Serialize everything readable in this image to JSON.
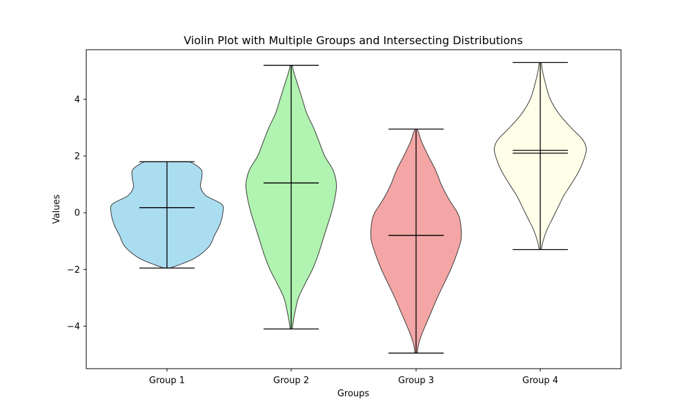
{
  "chart_data": {
    "type": "violin",
    "title": "Violin Plot with Multiple Groups and Intersecting Distributions",
    "xlabel": "Groups",
    "ylabel": "Values",
    "ylim": [
      -5.5,
      5.75
    ],
    "yticks": [
      -4,
      -2,
      0,
      2,
      4
    ],
    "ytick_labels": [
      "−4",
      "−2",
      "0",
      "2",
      "4"
    ],
    "categories": [
      "Group 1",
      "Group 2",
      "Group 3",
      "Group 4"
    ],
    "groups": [
      {
        "name": "Group 1",
        "color": "#87CEEB",
        "min": -1.95,
        "max": 1.8,
        "mean": 0.18,
        "median": 0.18,
        "profile": [
          [
            -1.95,
            0.05
          ],
          [
            -1.85,
            0.2
          ],
          [
            -1.6,
            0.5
          ],
          [
            -1.2,
            0.75
          ],
          [
            -0.8,
            0.85
          ],
          [
            -0.4,
            0.95
          ],
          [
            0,
            1.0
          ],
          [
            0.3,
            0.98
          ],
          [
            0.6,
            0.7
          ],
          [
            0.9,
            0.6
          ],
          [
            1.2,
            0.62
          ],
          [
            1.5,
            0.62
          ],
          [
            1.7,
            0.5
          ],
          [
            1.8,
            0.4
          ]
        ]
      },
      {
        "name": "Group 2",
        "color": "#90EE90",
        "min": -4.1,
        "max": 5.2,
        "mean": 1.05,
        "median": 1.05,
        "profile": [
          [
            -4.1,
            0.02
          ],
          [
            -3.8,
            0.04
          ],
          [
            -3.4,
            0.08
          ],
          [
            -3.0,
            0.13
          ],
          [
            -2.5,
            0.25
          ],
          [
            -2.0,
            0.38
          ],
          [
            -1.5,
            0.48
          ],
          [
            -1.0,
            0.56
          ],
          [
            -0.5,
            0.64
          ],
          [
            0,
            0.72
          ],
          [
            0.5,
            0.78
          ],
          [
            1.0,
            0.81
          ],
          [
            1.5,
            0.75
          ],
          [
            2.0,
            0.6
          ],
          [
            2.5,
            0.5
          ],
          [
            3.0,
            0.4
          ],
          [
            3.5,
            0.28
          ],
          [
            4.0,
            0.2
          ],
          [
            4.5,
            0.12
          ],
          [
            5.0,
            0.04
          ],
          [
            5.2,
            0.02
          ]
        ]
      },
      {
        "name": "Group 3",
        "color": "#F08080",
        "min": -4.95,
        "max": 2.95,
        "mean": -0.8,
        "median": -0.8,
        "profile": [
          [
            -4.95,
            0.02
          ],
          [
            -4.6,
            0.05
          ],
          [
            -4.2,
            0.12
          ],
          [
            -3.6,
            0.25
          ],
          [
            -3.0,
            0.38
          ],
          [
            -2.5,
            0.5
          ],
          [
            -2.0,
            0.62
          ],
          [
            -1.5,
            0.72
          ],
          [
            -1.0,
            0.8
          ],
          [
            -0.7,
            0.81
          ],
          [
            -0.3,
            0.79
          ],
          [
            0,
            0.74
          ],
          [
            0.5,
            0.58
          ],
          [
            1.0,
            0.45
          ],
          [
            1.5,
            0.35
          ],
          [
            2.0,
            0.22
          ],
          [
            2.5,
            0.1
          ],
          [
            2.8,
            0.05
          ],
          [
            2.95,
            0.02
          ]
        ]
      },
      {
        "name": "Group 4",
        "color": "#FFFFE0",
        "min": -1.3,
        "max": 5.3,
        "mean": 2.2,
        "median": 2.1,
        "profile": [
          [
            -1.3,
            0.02
          ],
          [
            -1.0,
            0.05
          ],
          [
            -0.6,
            0.12
          ],
          [
            -0.2,
            0.22
          ],
          [
            0.2,
            0.32
          ],
          [
            0.6,
            0.42
          ],
          [
            1.0,
            0.55
          ],
          [
            1.5,
            0.7
          ],
          [
            2.0,
            0.8
          ],
          [
            2.3,
            0.82
          ],
          [
            2.6,
            0.75
          ],
          [
            3.0,
            0.55
          ],
          [
            3.5,
            0.33
          ],
          [
            4.0,
            0.18
          ],
          [
            4.5,
            0.1
          ],
          [
            5.0,
            0.04
          ],
          [
            5.3,
            0.02
          ]
        ]
      }
    ]
  }
}
